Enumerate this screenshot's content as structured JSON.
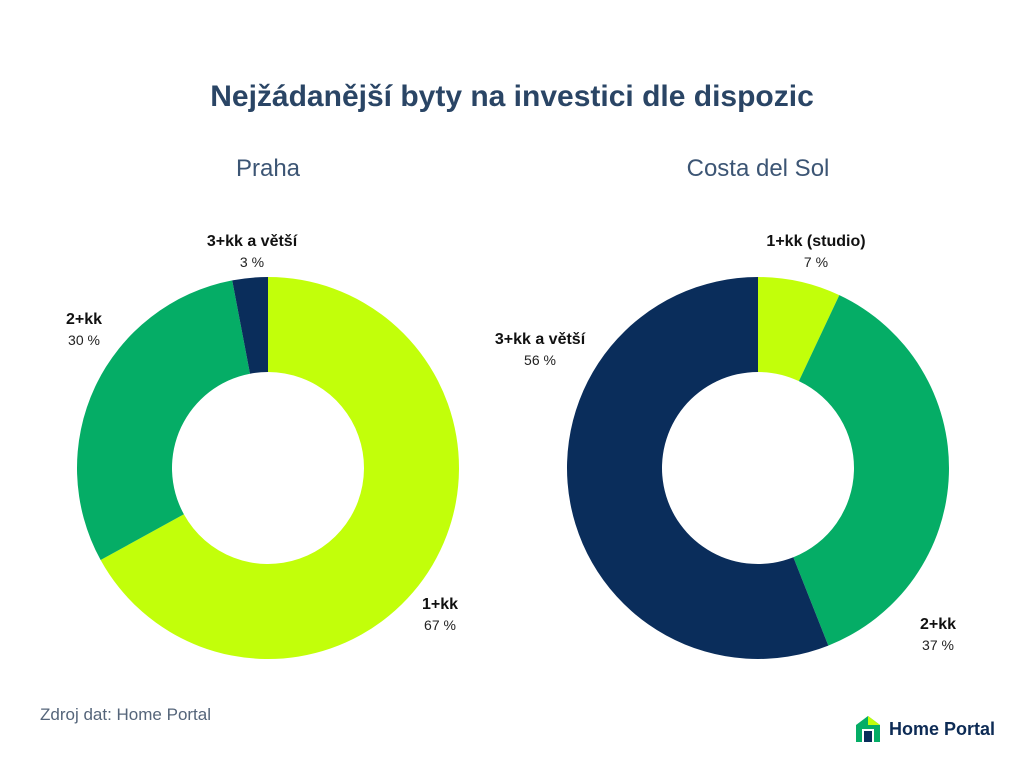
{
  "title": "Nejžádanější byty na investici dle dispozic",
  "colors": {
    "title": "#2a4565",
    "lime": "#c2ff0a",
    "green": "#05ad66",
    "navy": "#0a2d5b"
  },
  "chart_data": [
    {
      "type": "pie",
      "variant": "donut",
      "subtitle": "Praha",
      "slices": [
        {
          "name": "1+kk",
          "value": 67,
          "pct_label": "67 %",
          "color": "#c2ff0a"
        },
        {
          "name": "2+kk",
          "value": 30,
          "pct_label": "30 %",
          "color": "#05ad66"
        },
        {
          "name": "3+kk a větší",
          "value": 3,
          "pct_label": "3 %",
          "color": "#0a2d5b"
        }
      ]
    },
    {
      "type": "pie",
      "variant": "donut",
      "subtitle": "Costa del Sol",
      "slices": [
        {
          "name": "1+kk (studio)",
          "value": 7,
          "pct_label": "7 %",
          "color": "#c2ff0a"
        },
        {
          "name": "2+kk",
          "value": 37,
          "pct_label": "37 %",
          "color": "#05ad66"
        },
        {
          "name": "3+kk a větší",
          "value": 56,
          "pct_label": "56 %",
          "color": "#0a2d5b"
        }
      ]
    }
  ],
  "source": "Zdroj dat: Home Portal",
  "brand": {
    "name": "Home Portal",
    "logo_icon": "house-logo-icon"
  }
}
